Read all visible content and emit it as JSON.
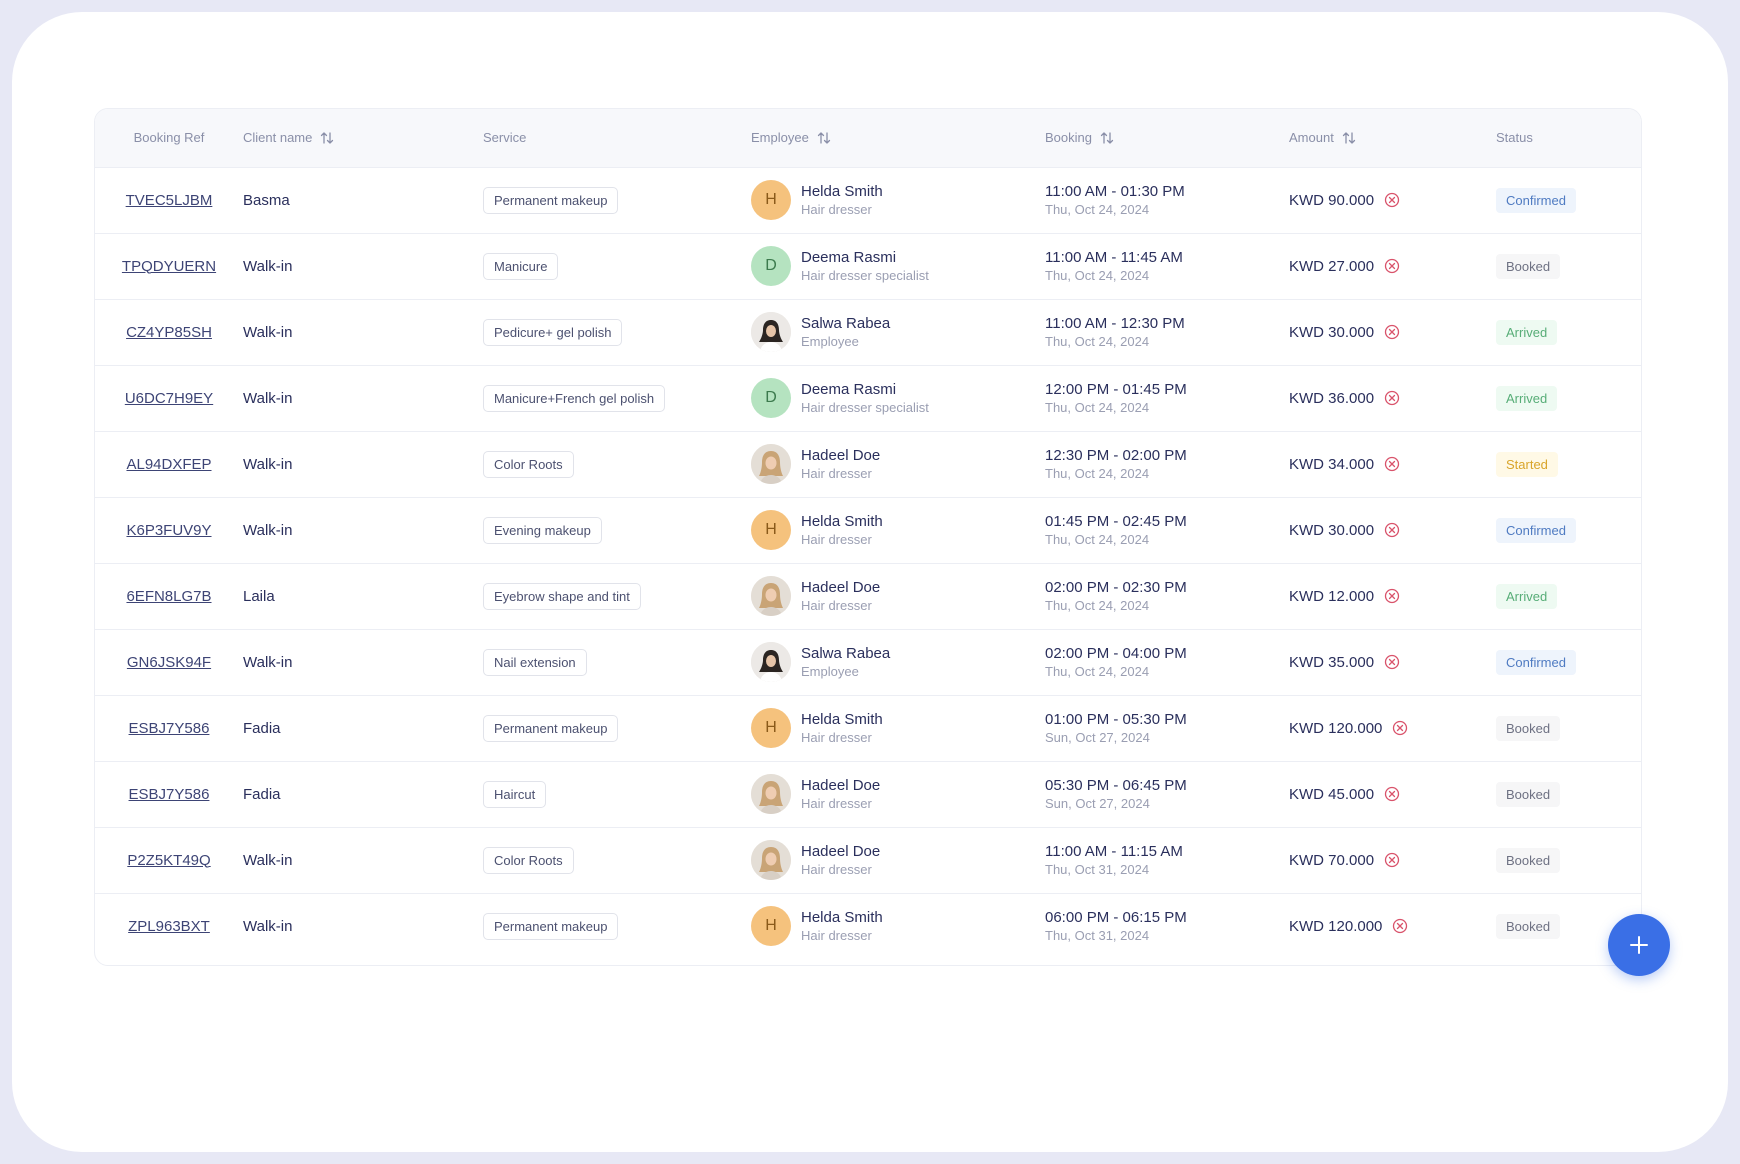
{
  "table": {
    "headers": {
      "booking_ref": "Booking Ref",
      "client_name": "Client name",
      "service": "Service",
      "employee": "Employee",
      "booking": "Booking",
      "amount": "Amount",
      "status": "Status"
    },
    "rows": [
      {
        "ref": "TVEC5LJBM",
        "client": "Basma",
        "service": "Permanent makeup",
        "emp_name": "Helda Smith",
        "emp_role": "Hair dresser",
        "avatar": "H",
        "avatar_type": "letter-orange",
        "time": "11:00 AM - 01:30 PM",
        "date": "Thu, Oct 24, 2024",
        "amount": "KWD 90.000",
        "status": "Confirmed"
      },
      {
        "ref": "TPQDYUERN",
        "client": "Walk-in",
        "service": "Manicure",
        "emp_name": "Deema Rasmi",
        "emp_role": "Hair dresser specialist",
        "avatar": "D",
        "avatar_type": "letter-green",
        "time": "11:00 AM - 11:45 AM",
        "date": "Thu, Oct 24, 2024",
        "amount": "KWD 27.000",
        "status": "Booked"
      },
      {
        "ref": "CZ4YP85SH",
        "client": "Walk-in",
        "service": "Pedicure+ gel polish",
        "emp_name": "Salwa Rabea",
        "emp_role": "Employee",
        "avatar": "",
        "avatar_type": "photo-dark",
        "time": "11:00 AM - 12:30 PM",
        "date": "Thu, Oct 24, 2024",
        "amount": "KWD 30.000",
        "status": "Arrived"
      },
      {
        "ref": "U6DC7H9EY",
        "client": "Walk-in",
        "service": "Manicure+French gel polish",
        "emp_name": "Deema Rasmi",
        "emp_role": "Hair dresser specialist",
        "avatar": "D",
        "avatar_type": "letter-green",
        "time": "12:00 PM - 01:45 PM",
        "date": "Thu, Oct 24, 2024",
        "amount": "KWD 36.000",
        "status": "Arrived"
      },
      {
        "ref": "AL94DXFEP",
        "client": "Walk-in",
        "service": "Color Roots",
        "emp_name": "Hadeel Doe",
        "emp_role": "Hair dresser",
        "avatar": "",
        "avatar_type": "photo-blonde",
        "time": "12:30 PM - 02:00 PM",
        "date": "Thu, Oct 24, 2024",
        "amount": "KWD 34.000",
        "status": "Started"
      },
      {
        "ref": "K6P3FUV9Y",
        "client": "Walk-in",
        "service": "Evening makeup",
        "emp_name": "Helda Smith",
        "emp_role": "Hair dresser",
        "avatar": "H",
        "avatar_type": "letter-orange",
        "time": "01:45 PM - 02:45 PM",
        "date": "Thu, Oct 24, 2024",
        "amount": "KWD 30.000",
        "status": "Confirmed"
      },
      {
        "ref": "6EFN8LG7B",
        "client": "Laila",
        "service": "Eyebrow shape and tint",
        "emp_name": "Hadeel Doe",
        "emp_role": "Hair dresser",
        "avatar": "",
        "avatar_type": "photo-blonde",
        "time": "02:00 PM - 02:30 PM",
        "date": "Thu, Oct 24, 2024",
        "amount": "KWD 12.000",
        "status": "Arrived"
      },
      {
        "ref": "GN6JSK94F",
        "client": "Walk-in",
        "service": "Nail extension",
        "emp_name": "Salwa Rabea",
        "emp_role": "Employee",
        "avatar": "",
        "avatar_type": "photo-dark",
        "time": "02:00 PM - 04:00 PM",
        "date": "Thu, Oct 24, 2024",
        "amount": "KWD 35.000",
        "status": "Confirmed"
      },
      {
        "ref": "ESBJ7Y586",
        "client": "Fadia",
        "service": "Permanent makeup",
        "emp_name": "Helda Smith",
        "emp_role": "Hair dresser",
        "avatar": "H",
        "avatar_type": "letter-orange",
        "time": "01:00 PM - 05:30 PM",
        "date": "Sun, Oct 27, 2024",
        "amount": "KWD 120.000",
        "status": "Booked"
      },
      {
        "ref": "ESBJ7Y586",
        "client": "Fadia",
        "service": "Haircut",
        "emp_name": "Hadeel Doe",
        "emp_role": "Hair dresser",
        "avatar": "",
        "avatar_type": "photo-blonde",
        "time": "05:30 PM - 06:45 PM",
        "date": "Sun, Oct 27, 2024",
        "amount": "KWD 45.000",
        "status": "Booked"
      },
      {
        "ref": "P2Z5KT49Q",
        "client": "Walk-in",
        "service": "Color Roots",
        "emp_name": "Hadeel Doe",
        "emp_role": "Hair dresser",
        "avatar": "",
        "avatar_type": "photo-blonde",
        "time": "11:00 AM - 11:15 AM",
        "date": "Thu, Oct 31, 2024",
        "amount": "KWD 70.000",
        "status": "Booked"
      },
      {
        "ref": "ZPL963BXT",
        "client": "Walk-in",
        "service": "Permanent makeup",
        "emp_name": "Helda Smith",
        "emp_role": "Hair dresser",
        "avatar": "H",
        "avatar_type": "letter-orange",
        "time": "06:00 PM - 06:15 PM",
        "date": "Thu, Oct 31, 2024",
        "amount": "KWD 120.000",
        "status": "Booked"
      }
    ]
  },
  "icons": {
    "sort": "sort-arrows-icon",
    "cancel": "cancel-circle-icon",
    "fab": "plus-icon"
  },
  "colors": {
    "accent": "#3a6fe6",
    "confirmed": "#4f7bc2",
    "arrived": "#57ad77",
    "started": "#d9a52a",
    "booked": "#6e7183",
    "cancel_icon": "#d9536b"
  }
}
